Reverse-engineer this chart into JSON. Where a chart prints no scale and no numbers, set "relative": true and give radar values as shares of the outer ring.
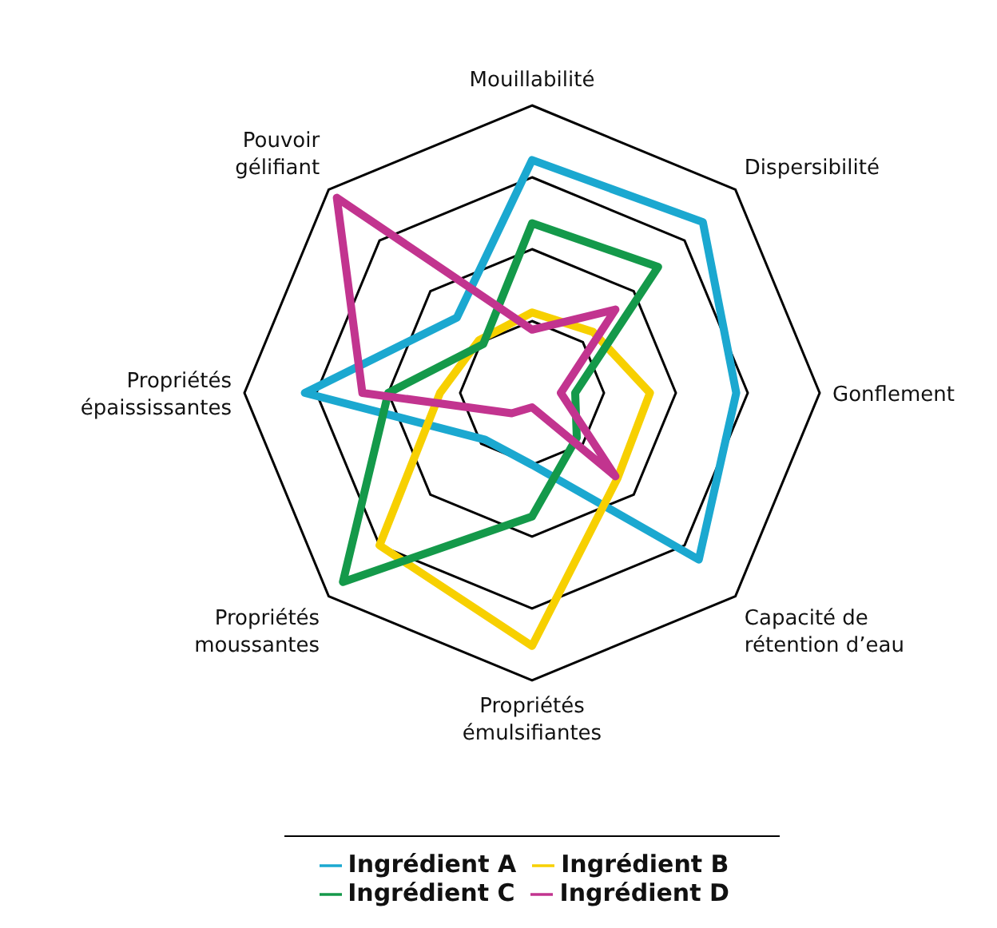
{
  "chart_data": {
    "type": "radar",
    "relative": true,
    "grid": true,
    "legend": "bottom",
    "categories": [
      "Mouillabilité",
      "Dispersibilité",
      "Gonflement",
      "Capacité de rétention d’eau",
      "Propriétés émulsifiantes",
      "Propriétés moussantes",
      "Propriétés épaississantes",
      "Pouvoir gélifiant"
    ],
    "series": [
      {
        "name": "Ingrédient A",
        "color": "#1ba8d0",
        "values": [
          0.81,
          0.84,
          0.71,
          0.82,
          0.25,
          0.23,
          0.79,
          0.37
        ]
      },
      {
        "name": "Ingrédient B",
        "color": "#f7d000",
        "values": [
          0.28,
          0.3,
          0.41,
          0.42,
          0.88,
          0.75,
          0.32,
          0.26
        ]
      },
      {
        "name": "Ingrédient C",
        "color": "#14994a",
        "values": [
          0.59,
          0.62,
          0.15,
          0.22,
          0.43,
          0.93,
          0.5,
          0.24
        ]
      },
      {
        "name": "Ingrédient D",
        "color": "#c2348f",
        "values": [
          0.22,
          0.41,
          0.1,
          0.41,
          0.05,
          0.1,
          0.59,
          0.96
        ]
      }
    ]
  }
}
